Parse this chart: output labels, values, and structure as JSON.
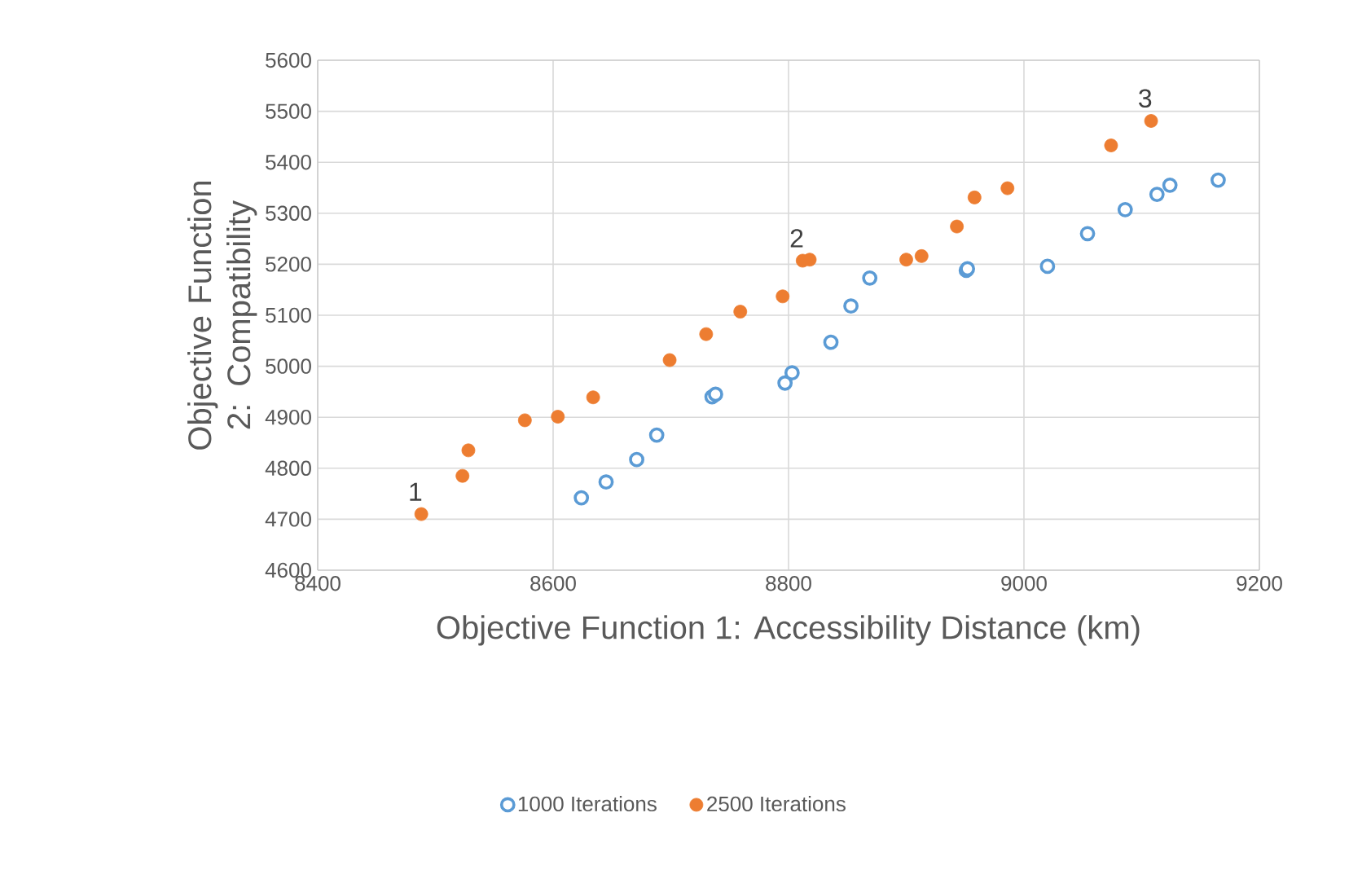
{
  "chart_data": {
    "type": "scatter",
    "xlabel": "Objective Function 1: Accessibility Distance (km)",
    "ylabel": "Objective Function 2: Compatibility",
    "xlim": [
      8400,
      9200
    ],
    "xticks": [
      8400,
      8600,
      8800,
      9000,
      9200
    ],
    "ylim": [
      4600,
      5600
    ],
    "yticks": [
      4600,
      4700,
      4800,
      4900,
      5000,
      5100,
      5200,
      5300,
      5400,
      5500,
      5600
    ],
    "grid": true,
    "legend": "bottom",
    "marker": "circle",
    "series": [
      {
        "name": "1000 Iterations",
        "color": "#5b9bd5",
        "x": [
          8624,
          8645,
          8671,
          8688,
          8735,
          8738,
          8797,
          8803,
          8836,
          8853,
          8869,
          8951,
          8952,
          9020,
          9054,
          9086,
          9113,
          9124,
          9165
        ],
        "values": [
          4742,
          4773,
          4817,
          4865,
          4940,
          4945,
          4967,
          4987,
          5047,
          5118,
          5173,
          5188,
          5191,
          5196,
          5260,
          5307,
          5337,
          5355,
          5365
        ]
      },
      {
        "name": "2500 Iterations",
        "color": "#ed7d31",
        "x": [
          8488,
          8523,
          8528,
          8576,
          8604,
          8634,
          8699,
          8730,
          8759,
          8795,
          8812,
          8818,
          8900,
          8913,
          8943,
          8958,
          8986,
          9074,
          9108
        ],
        "values": [
          4710,
          4785,
          4835,
          4894,
          4901,
          4939,
          5012,
          5063,
          5107,
          5137,
          5207,
          5209,
          5209,
          5216,
          5274,
          5331,
          5349,
          5433,
          5481
        ]
      }
    ],
    "annotations": [
      {
        "text": "1",
        "x": 8488,
        "y": 4710
      },
      {
        "text": "2",
        "x": 8812,
        "y": 5207
      },
      {
        "text": "3",
        "x": 9108,
        "y": 5481
      }
    ]
  }
}
